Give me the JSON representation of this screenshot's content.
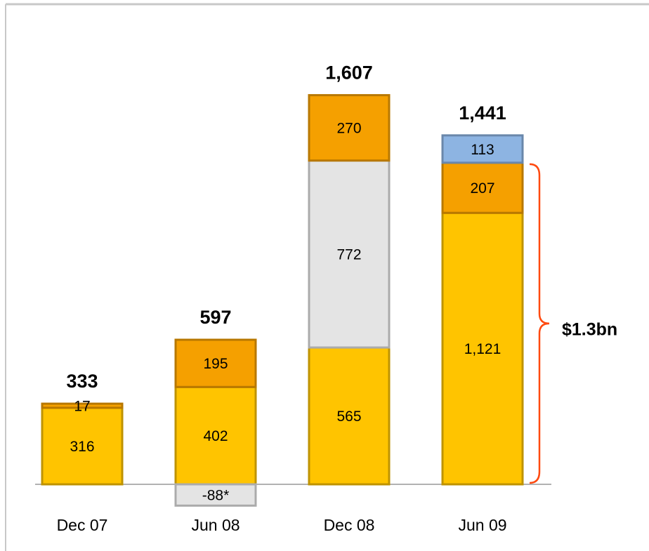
{
  "chart_data": {
    "type": "stacked_bar",
    "categories": [
      "Dec 07",
      "Jun 08",
      "Dec 08",
      "Jun 09"
    ],
    "series": [
      {
        "color": "#ffc400",
        "values": [
          316,
          402,
          565,
          1121
        ],
        "value_labels": [
          "316",
          "402",
          "565",
          "1,121"
        ]
      },
      {
        "color": "#e4e4e4",
        "values": [
          null,
          -88,
          772,
          null
        ],
        "value_labels": [
          null,
          "-88*",
          "772",
          null
        ]
      },
      {
        "color": "#f5a000",
        "values": [
          17,
          195,
          270,
          207
        ]
      },
      {
        "color": "#8db4e2",
        "values": [
          null,
          null,
          null,
          113
        ]
      }
    ],
    "totals": [
      333,
      597,
      1607,
      1441
    ],
    "total_labels": [
      "333",
      "597",
      "1,607",
      "1,441"
    ],
    "annotation": "$1.3bn",
    "ylim": [
      -150,
      1700
    ]
  }
}
